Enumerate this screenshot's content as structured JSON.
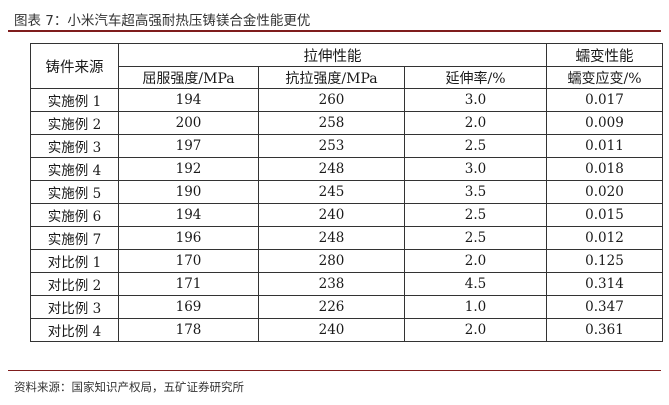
{
  "figure": {
    "title": "图表 7：小米汽车超高强耐热压铸镁合金性能更优"
  },
  "table": {
    "row_header": "铸件来源",
    "group_headers": [
      "拉伸性能",
      "蠕变性能"
    ],
    "sub_headers": [
      "屈服强度/MPa",
      "抗拉强度/MPa",
      "延伸率/%",
      "蠕变应变/%"
    ],
    "rows": [
      {
        "source": "实施例 1",
        "yield": "194",
        "tensile": "260",
        "elong": "3.0",
        "creep": "0.017"
      },
      {
        "source": "实施例 2",
        "yield": "200",
        "tensile": "258",
        "elong": "2.0",
        "creep": "0.009"
      },
      {
        "source": "实施例 3",
        "yield": "197",
        "tensile": "253",
        "elong": "2.5",
        "creep": "0.011"
      },
      {
        "source": "实施例 4",
        "yield": "192",
        "tensile": "248",
        "elong": "3.0",
        "creep": "0.018"
      },
      {
        "source": "实施例 5",
        "yield": "190",
        "tensile": "245",
        "elong": "3.5",
        "creep": "0.020"
      },
      {
        "source": "实施例 6",
        "yield": "194",
        "tensile": "240",
        "elong": "2.5",
        "creep": "0.015"
      },
      {
        "source": "实施例 7",
        "yield": "196",
        "tensile": "248",
        "elong": "2.5",
        "creep": "0.012"
      },
      {
        "source": "对比例 1",
        "yield": "170",
        "tensile": "280",
        "elong": "2.0",
        "creep": "0.125"
      },
      {
        "source": "对比例 2",
        "yield": "171",
        "tensile": "238",
        "elong": "4.5",
        "creep": "0.314"
      },
      {
        "source": "对比例 3",
        "yield": "169",
        "tensile": "226",
        "elong": "1.0",
        "creep": "0.347"
      },
      {
        "source": "对比例 4",
        "yield": "178",
        "tensile": "240",
        "elong": "2.0",
        "creep": "0.361"
      }
    ]
  },
  "footer": {
    "source": "资料来源：国家知识产权局，五矿证券研究所"
  },
  "colors": {
    "rule": "#7f1d1d",
    "border": "#333333",
    "text": "#1a1a1a"
  }
}
